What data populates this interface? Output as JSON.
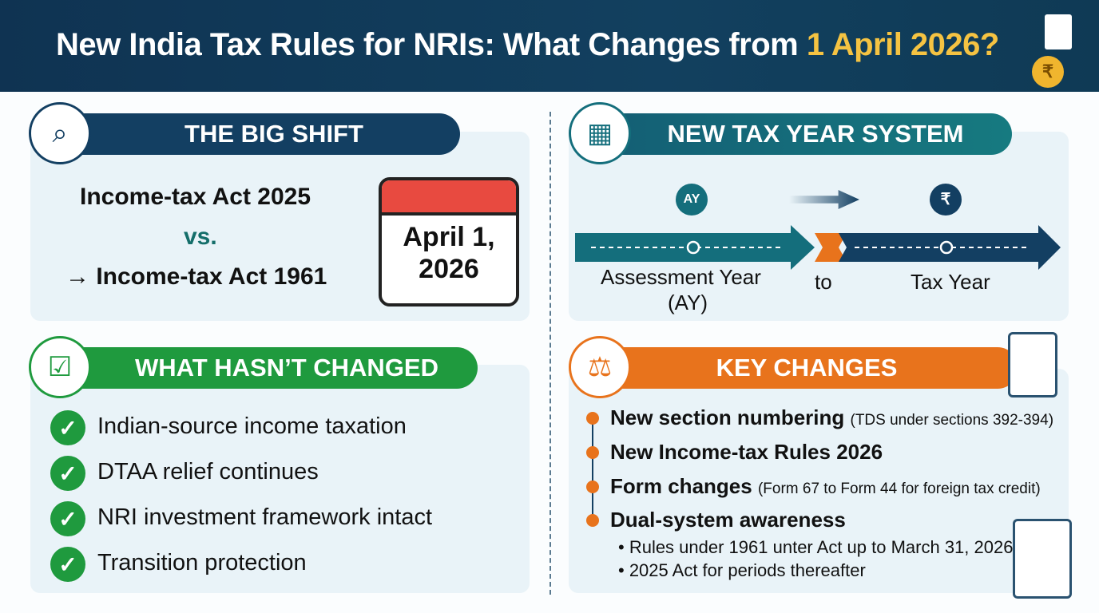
{
  "header": {
    "title": "New India Tax Rules for NRIs: What Changes from ",
    "title_highlight": "1 April 2026?",
    "icon": "law-document-coins-icon"
  },
  "big_shift": {
    "title": "THE BIG SHIFT",
    "line1": "Income-tax Act 2025",
    "vs": "vs.",
    "line3": "→ Income-tax Act 1961",
    "calendar_line1": "April 1,",
    "calendar_line2": "2026",
    "icon": "law-search-icon"
  },
  "tax_year": {
    "title": "NEW TAX YEAR SYSTEM",
    "ay_pin": "AY",
    "rupee_pin": "₹",
    "from_label": "Assessment Year",
    "from_sub": "(AY)",
    "to": "to",
    "to_label": "Tax Year",
    "icon": "calendar-clock-icon"
  },
  "unchanged": {
    "title": "WHAT HASN’T CHANGED",
    "items": [
      "Indian-source income taxation",
      "DTAA relief continues",
      "NRI investment framework intact",
      "Transition protection"
    ],
    "icon": "checklist-icon"
  },
  "key_changes": {
    "title": "KEY CHANGES",
    "icon": "gavel-icon",
    "items": [
      {
        "bold": "New section numbering",
        "note": "(TDS under sections 392-394)"
      },
      {
        "bold": "New Income-tax Rules 2026",
        "note": ""
      },
      {
        "bold": "Form changes",
        "note": "(Form 67 to Form 44 for foreign tax credit)"
      },
      {
        "bold": "Dual-system awareness",
        "note": ""
      }
    ],
    "subitems": [
      "• Rules under 1961 unter Act up to March 31, 2026",
      "• 2025 Act for periods thereafter"
    ]
  },
  "colors": {
    "navy": "#0f3352",
    "teal": "#146e7c",
    "green": "#1f9a3e",
    "orange": "#e8731c",
    "gold": "#f5c342"
  }
}
